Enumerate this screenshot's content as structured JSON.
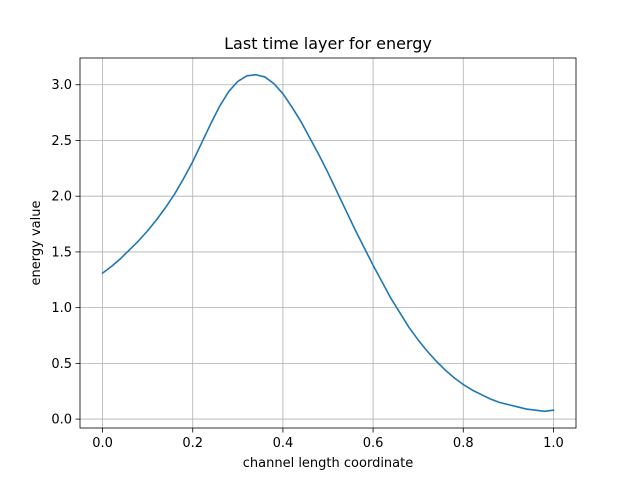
{
  "chart_data": {
    "type": "line",
    "title": "Last time layer for energy",
    "xlabel": "channel length coordinate",
    "ylabel": "energy value",
    "xlim": [
      -0.05,
      1.05
    ],
    "ylim": [
      -0.08,
      3.24
    ],
    "xticks": [
      0.0,
      0.2,
      0.4,
      0.6,
      0.8,
      1.0
    ],
    "xtick_labels": [
      "0.0",
      "0.2",
      "0.4",
      "0.6",
      "0.8",
      "1.0"
    ],
    "yticks": [
      0.0,
      0.5,
      1.0,
      1.5,
      2.0,
      2.5,
      3.0
    ],
    "ytick_labels": [
      "0.0",
      "0.5",
      "1.0",
      "1.5",
      "2.0",
      "2.5",
      "3.0"
    ],
    "grid": true,
    "legend": false,
    "series": [
      {
        "color": "#1f77b4",
        "x": [
          0.0,
          0.02,
          0.04,
          0.06,
          0.08,
          0.1,
          0.12,
          0.14,
          0.16,
          0.18,
          0.2,
          0.22,
          0.24,
          0.26,
          0.28,
          0.3,
          0.32,
          0.34,
          0.36,
          0.38,
          0.4,
          0.42,
          0.44,
          0.46,
          0.48,
          0.5,
          0.52,
          0.54,
          0.56,
          0.58,
          0.6,
          0.62,
          0.64,
          0.66,
          0.68,
          0.7,
          0.72,
          0.74,
          0.76,
          0.78,
          0.8,
          0.82,
          0.84,
          0.86,
          0.88,
          0.9,
          0.92,
          0.94,
          0.96,
          0.98,
          1.0
        ],
        "y": [
          1.31,
          1.37,
          1.44,
          1.52,
          1.6,
          1.69,
          1.79,
          1.9,
          2.02,
          2.16,
          2.31,
          2.48,
          2.65,
          2.81,
          2.94,
          3.03,
          3.08,
          3.09,
          3.07,
          3.01,
          2.92,
          2.8,
          2.67,
          2.52,
          2.37,
          2.21,
          2.04,
          1.87,
          1.7,
          1.54,
          1.38,
          1.23,
          1.08,
          0.95,
          0.82,
          0.71,
          0.61,
          0.52,
          0.44,
          0.37,
          0.31,
          0.26,
          0.22,
          0.18,
          0.15,
          0.13,
          0.11,
          0.09,
          0.08,
          0.07,
          0.08
        ]
      }
    ]
  }
}
